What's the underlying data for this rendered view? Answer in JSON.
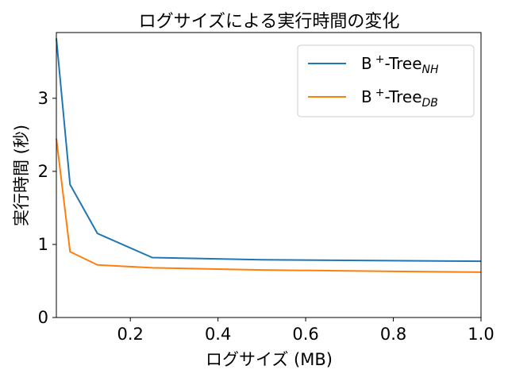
{
  "chart_data": {
    "type": "line",
    "title": "ログサイズによる実行時間の変化",
    "xlabel": "ログサイズ (MB)",
    "ylabel": "実行時間 (秒)",
    "xlim": [
      0.03125,
      1.0
    ],
    "ylim": [
      0,
      3.9
    ],
    "xticks": [
      0.2,
      0.4,
      0.6,
      0.8,
      1.0
    ],
    "xtick_labels": [
      "0.2",
      "0.4",
      "0.6",
      "0.8",
      "1.0"
    ],
    "yticks": [
      0,
      1,
      2,
      3
    ],
    "ytick_labels": [
      "0",
      "1",
      "2",
      "3"
    ],
    "grid": false,
    "legend_position": "top-right",
    "series": [
      {
        "name": "B+-TreeNH",
        "name_main": "B",
        "name_sup": "+",
        "name_mid": "-Tree",
        "name_sub": "NH",
        "color": "#1f77b4",
        "x": [
          0.03125,
          0.0625,
          0.125,
          0.25,
          0.5,
          1.0
        ],
        "y": [
          3.82,
          1.82,
          1.15,
          0.82,
          0.79,
          0.77
        ]
      },
      {
        "name": "B+-TreeDB",
        "name_main": "B",
        "name_sup": "+",
        "name_mid": "-Tree",
        "name_sub": "DB",
        "color": "#ff7f0e",
        "x": [
          0.03125,
          0.0625,
          0.125,
          0.25,
          0.5,
          1.0
        ],
        "y": [
          2.45,
          0.9,
          0.72,
          0.68,
          0.65,
          0.62
        ]
      }
    ]
  }
}
